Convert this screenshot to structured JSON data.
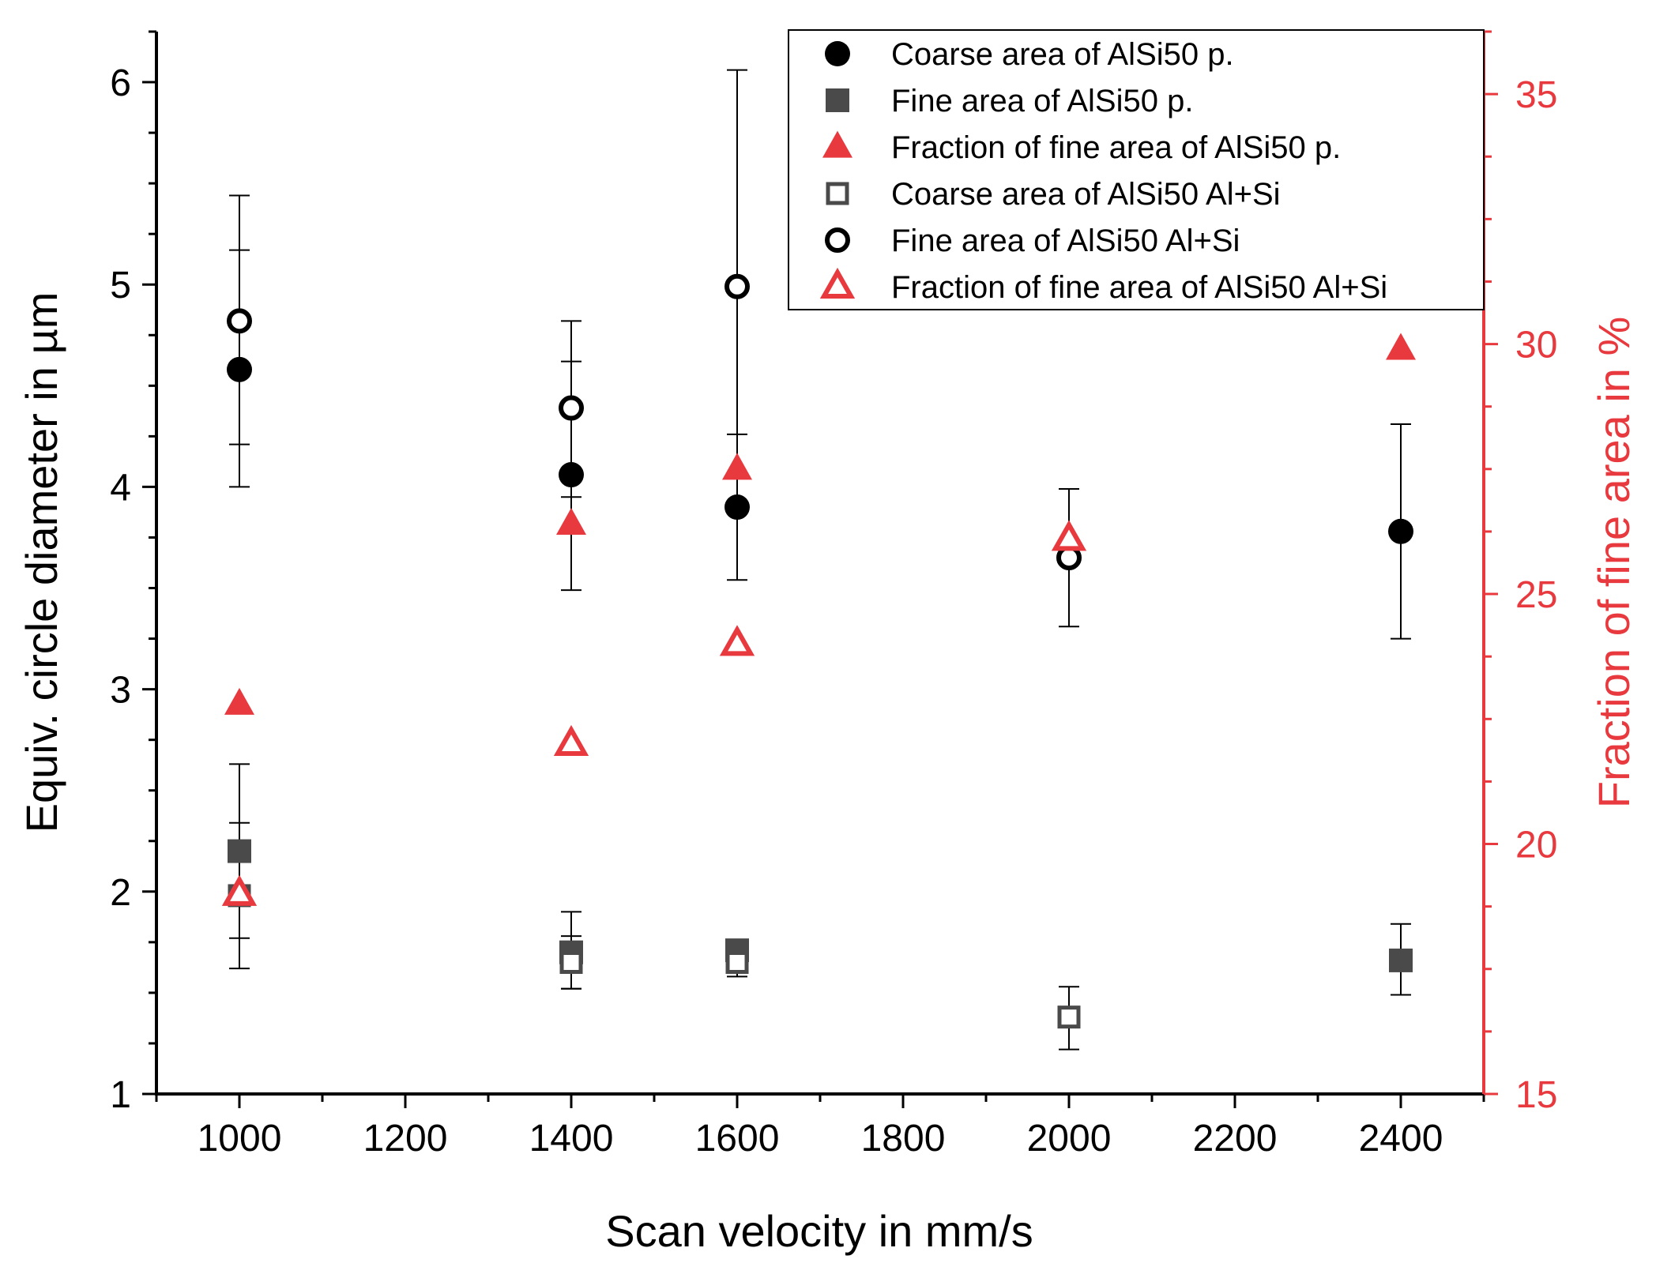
{
  "chart_data": {
    "type": "scatter",
    "xlabel": "Scan velocity in mm/s",
    "ylabel": "Equiv. circle diameter in µm",
    "y2label": "Fraction of fine area in %",
    "xlim": [
      900,
      2500
    ],
    "ylim": [
      1,
      6.25
    ],
    "y2lim": [
      15,
      36.25
    ],
    "xticks": [
      1000,
      1200,
      1400,
      1600,
      1800,
      2000,
      2200,
      2400
    ],
    "yticks": [
      1,
      2,
      3,
      4,
      5,
      6
    ],
    "y2ticks": [
      15,
      20,
      25,
      30,
      35
    ],
    "legend_position": "top-right",
    "colors": {
      "black": "#000000",
      "gray": "#4a4a4a",
      "red": "#e8393e"
    },
    "series": [
      {
        "name": "Coarse area of AlSi50 p.",
        "axis": "left",
        "marker": "circle",
        "filled": true,
        "color": "#000000",
        "points": [
          {
            "x": 1000,
            "y": 4.58,
            "err_low": 4.0,
            "err_high": 5.17
          },
          {
            "x": 1400,
            "y": 4.06,
            "err_low": 3.49,
            "err_high": 4.62
          },
          {
            "x": 1600,
            "y": 3.9,
            "err_low": 3.54,
            "err_high": 4.26
          },
          {
            "x": 2400,
            "y": 3.78,
            "err_low": 3.25,
            "err_high": 4.31
          }
        ]
      },
      {
        "name": "Fine area of AlSi50 p.",
        "axis": "left",
        "marker": "square",
        "filled": true,
        "color": "#4a4a4a",
        "points": [
          {
            "x": 1000,
            "y": 2.2,
            "err_low": 1.77,
            "err_high": 2.63
          },
          {
            "x": 1400,
            "y": 1.7,
            "err_low": 1.52,
            "err_high": 1.9
          },
          {
            "x": 1600,
            "y": 1.71,
            "err_low": 1.6,
            "err_high": 1.73
          },
          {
            "x": 2400,
            "y": 1.66,
            "err_low": 1.49,
            "err_high": 1.84
          }
        ]
      },
      {
        "name": "Fraction of fine area of AlSi50 p.",
        "axis": "right",
        "marker": "triangle",
        "filled": true,
        "color": "#e8393e",
        "points": [
          {
            "x": 1000,
            "y": 22.8
          },
          {
            "x": 1400,
            "y": 26.4
          },
          {
            "x": 1600,
            "y": 27.5
          },
          {
            "x": 2400,
            "y": 29.9
          }
        ]
      },
      {
        "name": "Coarse area of AlSi50 Al+Si",
        "axis": "left",
        "marker": "square",
        "filled": false,
        "color": "#4a4a4a",
        "points": [
          {
            "x": 1000,
            "y": 1.98,
            "err_low": 1.62,
            "err_high": 2.34
          },
          {
            "x": 1400,
            "y": 1.65,
            "err_low": 1.52,
            "err_high": 1.78
          },
          {
            "x": 1600,
            "y": 1.65,
            "err_low": 1.58,
            "err_high": 1.72
          },
          {
            "x": 2000,
            "y": 1.38,
            "err_low": 1.22,
            "err_high": 1.53
          }
        ]
      },
      {
        "name": "Fine area of AlSi50 Al+Si",
        "axis": "left",
        "marker": "circle",
        "filled": false,
        "color": "#000000",
        "points": [
          {
            "x": 1000,
            "y": 4.82,
            "err_low": 4.21,
            "err_high": 5.44
          },
          {
            "x": 1400,
            "y": 4.39,
            "err_low": 3.95,
            "err_high": 4.82
          },
          {
            "x": 1600,
            "y": 4.99,
            "err_low": 3.92,
            "err_high": 6.06
          },
          {
            "x": 2000,
            "y": 3.65,
            "err_low": 3.31,
            "err_high": 3.99
          }
        ]
      },
      {
        "name": "Fraction of fine area of AlSi50 Al+Si",
        "axis": "right",
        "marker": "triangle",
        "filled": false,
        "color": "#e8393e",
        "points": [
          {
            "x": 1000,
            "y": 19.0
          },
          {
            "x": 1400,
            "y": 22.0
          },
          {
            "x": 1600,
            "y": 24.0
          },
          {
            "x": 2000,
            "y": 26.1
          }
        ]
      }
    ]
  }
}
